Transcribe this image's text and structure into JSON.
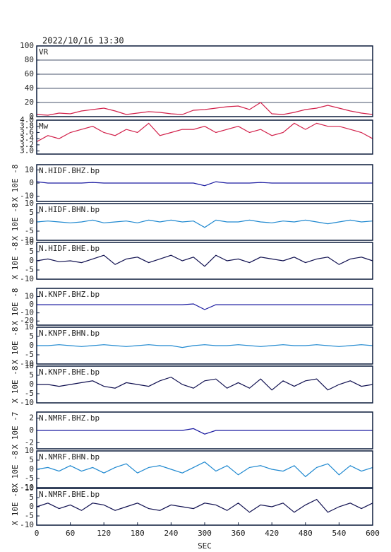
{
  "chart_data": [
    {
      "type": "line",
      "title": "2022/10/16 13:30",
      "panel_label": "VR",
      "color": "#d2204a",
      "grid": true,
      "x": [
        0,
        20,
        40,
        60,
        80,
        100,
        120,
        140,
        160,
        180,
        200,
        220,
        240,
        260,
        280,
        300,
        320,
        340,
        360,
        380,
        400,
        420,
        440,
        460,
        480,
        500,
        520,
        540,
        560,
        580,
        600
      ],
      "values": [
        3,
        2,
        5,
        4,
        8,
        10,
        12,
        8,
        3,
        5,
        7,
        6,
        4,
        3,
        9,
        10,
        12,
        14,
        15,
        10,
        20,
        4,
        3,
        6,
        10,
        12,
        16,
        12,
        8,
        5,
        3
      ],
      "xlim": [
        0,
        600
      ],
      "ylim": [
        0,
        100
      ],
      "yticks": [
        0,
        20,
        40,
        60,
        80,
        100
      ]
    },
    {
      "type": "line",
      "panel_label": "Mw",
      "color": "#d2204a",
      "x": [
        0,
        20,
        40,
        60,
        80,
        100,
        120,
        140,
        160,
        180,
        200,
        220,
        240,
        260,
        280,
        300,
        320,
        340,
        360,
        380,
        400,
        420,
        440,
        460,
        480,
        500,
        520,
        540,
        560,
        580,
        600
      ],
      "values": [
        3.3,
        3.5,
        3.4,
        3.6,
        3.7,
        3.8,
        3.6,
        3.5,
        3.7,
        3.6,
        3.9,
        3.5,
        3.6,
        3.7,
        3.7,
        3.8,
        3.6,
        3.7,
        3.8,
        3.6,
        3.7,
        3.5,
        3.6,
        3.9,
        3.7,
        3.9,
        3.8,
        3.8,
        3.7,
        3.6,
        3.4
      ],
      "xlim": [
        0,
        600
      ],
      "ylim": [
        2.9,
        4.0
      ],
      "yticks": [
        {
          "value": 3,
          "label": "3.0"
        },
        3.2,
        3.4,
        3.6,
        3.8,
        {
          "value": 4,
          "label": "4.0"
        }
      ]
    },
    {
      "type": "line",
      "panel_label": "N.HIDF.BHZ.bp",
      "ylabel": "X 10E -8",
      "color": "#1a1aa0",
      "x": [
        0,
        20,
        40,
        60,
        80,
        100,
        120,
        140,
        160,
        180,
        200,
        220,
        240,
        260,
        280,
        300,
        320,
        340,
        360,
        380,
        400,
        420,
        440,
        460,
        480,
        500,
        520,
        540,
        560,
        580,
        600
      ],
      "values": [
        1,
        0,
        0,
        0,
        0,
        0.5,
        0,
        0,
        0,
        0,
        0,
        0,
        0,
        0,
        0,
        -2,
        1,
        0,
        0,
        0,
        0.5,
        0,
        0,
        0,
        0,
        0,
        0,
        0,
        0,
        0,
        0
      ],
      "xlim": [
        0,
        600
      ],
      "ylim": [
        -14,
        14
      ],
      "yticks": [
        -10,
        0,
        10
      ]
    },
    {
      "type": "line",
      "panel_label": "N.HIDF.BHN.bp",
      "ylabel": "X 10E -8",
      "color": "#1e88d0",
      "x": [
        0,
        20,
        40,
        60,
        80,
        100,
        120,
        140,
        160,
        180,
        200,
        220,
        240,
        260,
        280,
        300,
        320,
        340,
        360,
        380,
        400,
        420,
        440,
        460,
        480,
        500,
        520,
        540,
        560,
        580,
        600
      ],
      "values": [
        0,
        0.5,
        0,
        -0.5,
        0,
        1,
        -0.5,
        0,
        0.5,
        -0.5,
        1,
        0,
        1,
        0,
        0.5,
        -3,
        1,
        0,
        0,
        1,
        0,
        -0.5,
        0.5,
        0,
        1,
        0,
        -1,
        0,
        1,
        0,
        0.5
      ],
      "xlim": [
        0,
        600
      ],
      "ylim": [
        -10,
        10
      ],
      "yticks": [
        -10,
        -5,
        0,
        5,
        10
      ]
    },
    {
      "type": "line",
      "panel_label": "N.HIDF.BHE.bp",
      "ylabel": "X 10E -8",
      "color": "#101050",
      "x": [
        0,
        20,
        40,
        60,
        80,
        100,
        120,
        140,
        160,
        180,
        200,
        220,
        240,
        260,
        280,
        300,
        320,
        340,
        360,
        380,
        400,
        420,
        440,
        460,
        480,
        500,
        520,
        540,
        560,
        580,
        600
      ],
      "values": [
        0,
        1,
        -0.5,
        0,
        -1,
        1,
        3,
        -2,
        1,
        2,
        -1,
        1,
        3,
        0,
        2,
        -3,
        3,
        0,
        1,
        -1,
        2,
        1,
        0,
        2,
        -1,
        1,
        2,
        -2,
        1,
        2,
        0
      ],
      "xlim": [
        0,
        600
      ],
      "ylim": [
        -10,
        10
      ],
      "yticks": [
        -10,
        -5,
        0,
        5,
        10
      ]
    },
    {
      "type": "line",
      "panel_label": "N.KNPF.BHZ.bp",
      "ylabel": "X 10E -8",
      "color": "#1a1aa0",
      "x": [
        0,
        20,
        40,
        60,
        80,
        100,
        120,
        140,
        160,
        180,
        200,
        220,
        240,
        260,
        280,
        300,
        320,
        340,
        360,
        380,
        400,
        420,
        440,
        460,
        480,
        500,
        520,
        540,
        560,
        580,
        600
      ],
      "values": [
        0,
        0,
        0,
        0,
        0,
        0,
        0,
        0,
        0,
        0,
        0,
        0,
        0,
        0,
        1,
        -6,
        0,
        0,
        0,
        0,
        0,
        0,
        0,
        0,
        0,
        0,
        0,
        0,
        0,
        0,
        0
      ],
      "xlim": [
        0,
        600
      ],
      "ylim": [
        -25,
        20
      ],
      "yticks": [
        -20,
        -10,
        0,
        10
      ]
    },
    {
      "type": "line",
      "panel_label": "N.KNPF.BHN.bp",
      "ylabel": "X 10E -8",
      "color": "#1e88d0",
      "x": [
        0,
        20,
        40,
        60,
        80,
        100,
        120,
        140,
        160,
        180,
        200,
        220,
        240,
        260,
        280,
        300,
        320,
        340,
        360,
        380,
        400,
        420,
        440,
        460,
        480,
        500,
        520,
        540,
        560,
        580,
        600
      ],
      "values": [
        0,
        0,
        0.5,
        0,
        -0.5,
        0,
        0.5,
        0,
        -0.5,
        0,
        0.5,
        0,
        0,
        -1,
        0,
        0.5,
        0,
        0,
        0.5,
        0,
        -0.5,
        0,
        0.5,
        0,
        0,
        0.5,
        0,
        -0.5,
        0,
        0.5,
        0
      ],
      "xlim": [
        0,
        600
      ],
      "ylim": [
        -10,
        10
      ],
      "yticks": [
        -10,
        -5,
        0,
        5,
        10
      ]
    },
    {
      "type": "line",
      "panel_label": "N.KNPF.BHE.bp",
      "ylabel": "X 10E -8",
      "color": "#101050",
      "x": [
        0,
        20,
        40,
        60,
        80,
        100,
        120,
        140,
        160,
        180,
        200,
        220,
        240,
        260,
        280,
        300,
        320,
        340,
        360,
        380,
        400,
        420,
        440,
        460,
        480,
        500,
        520,
        540,
        560,
        580,
        600
      ],
      "values": [
        0,
        0,
        -1,
        0,
        1,
        2,
        -1,
        -2,
        1,
        0,
        -1,
        2,
        4,
        0,
        -2,
        2,
        3,
        -2,
        1,
        -2,
        3,
        -3,
        2,
        -1,
        2,
        3,
        -3,
        0,
        2,
        -1,
        0
      ],
      "xlim": [
        0,
        600
      ],
      "ylim": [
        -10,
        10
      ],
      "yticks": [
        -10,
        -5,
        0,
        5,
        10
      ]
    },
    {
      "type": "line",
      "panel_label": "N.NMRF.BHZ.bp",
      "ylabel": "X 10E -7",
      "color": "#1a1aa0",
      "x": [
        0,
        20,
        40,
        60,
        80,
        100,
        120,
        140,
        160,
        180,
        200,
        220,
        240,
        260,
        280,
        300,
        320,
        340,
        360,
        380,
        400,
        420,
        440,
        460,
        480,
        500,
        520,
        540,
        560,
        580,
        600
      ],
      "values": [
        0,
        0,
        0,
        0,
        0,
        0,
        0,
        0,
        0,
        0,
        0,
        0,
        0,
        0,
        0.3,
        -0.6,
        0,
        0,
        0,
        0,
        0,
        0,
        0,
        0,
        0,
        0,
        0,
        0,
        0,
        0,
        0
      ],
      "xlim": [
        0,
        600
      ],
      "ylim": [
        -3,
        3
      ],
      "yticks": [
        -2,
        0,
        2
      ]
    },
    {
      "type": "line",
      "panel_label": "N.NMRF.BHN.bp",
      "ylabel": "X 10E -8",
      "color": "#1e88d0",
      "x": [
        0,
        20,
        40,
        60,
        80,
        100,
        120,
        140,
        160,
        180,
        200,
        220,
        240,
        260,
        280,
        300,
        320,
        340,
        360,
        380,
        400,
        420,
        440,
        460,
        480,
        500,
        520,
        540,
        560,
        580,
        600
      ],
      "values": [
        0,
        1,
        -1,
        2,
        -1,
        1,
        -2,
        1,
        3,
        -2,
        1,
        2,
        0,
        -2,
        1,
        4,
        -1,
        2,
        -3,
        1,
        2,
        0,
        -1,
        2,
        -4,
        1,
        3,
        -3,
        2,
        -1,
        1
      ],
      "xlim": [
        0,
        600
      ],
      "ylim": [
        -10,
        10
      ],
      "yticks": [
        -10,
        -5,
        0,
        5,
        10
      ]
    },
    {
      "type": "line",
      "panel_label": "N.NMRF.BHE.bp",
      "ylabel": "X 10E -8",
      "xlabel": "SEC",
      "color": "#101050",
      "x": [
        0,
        20,
        40,
        60,
        80,
        100,
        120,
        140,
        160,
        180,
        200,
        220,
        240,
        260,
        280,
        300,
        320,
        340,
        360,
        380,
        400,
        420,
        440,
        460,
        480,
        500,
        520,
        540,
        560,
        580,
        600
      ],
      "values": [
        0,
        2,
        -1,
        1,
        -2,
        2,
        1,
        -2,
        0,
        2,
        -1,
        -2,
        1,
        0,
        -1,
        2,
        1,
        -2,
        2,
        -3,
        1,
        0,
        2,
        -3,
        1,
        4,
        -3,
        0,
        2,
        -1,
        2
      ],
      "xlim": [
        0,
        600
      ],
      "ylim": [
        -10,
        10
      ],
      "yticks": [
        -10,
        -5,
        0,
        5,
        10
      ],
      "xticks": [
        0,
        60,
        120,
        180,
        240,
        300,
        360,
        420,
        480,
        540,
        600
      ]
    }
  ]
}
